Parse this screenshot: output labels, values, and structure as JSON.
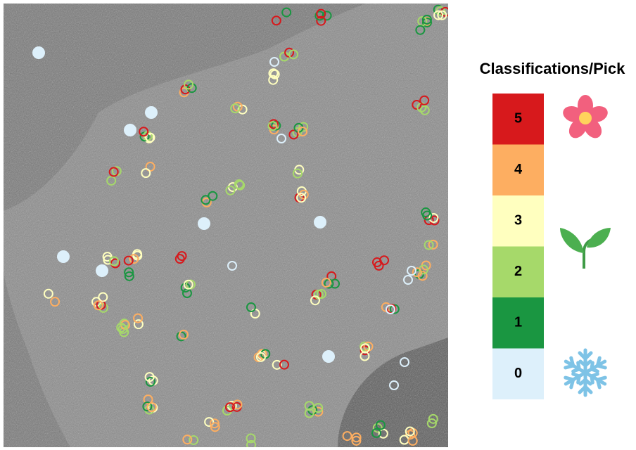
{
  "legend": {
    "title": "Classifications/Pick",
    "items": [
      {
        "label": "5",
        "color": "#d7191c"
      },
      {
        "label": "4",
        "color": "#fdae61"
      },
      {
        "label": "3",
        "color": "#ffffbf"
      },
      {
        "label": "2",
        "color": "#a6d96a"
      },
      {
        "label": "1",
        "color": "#1a9641"
      },
      {
        "label": "0",
        "color": "#ddf0fb"
      }
    ]
  }
}
